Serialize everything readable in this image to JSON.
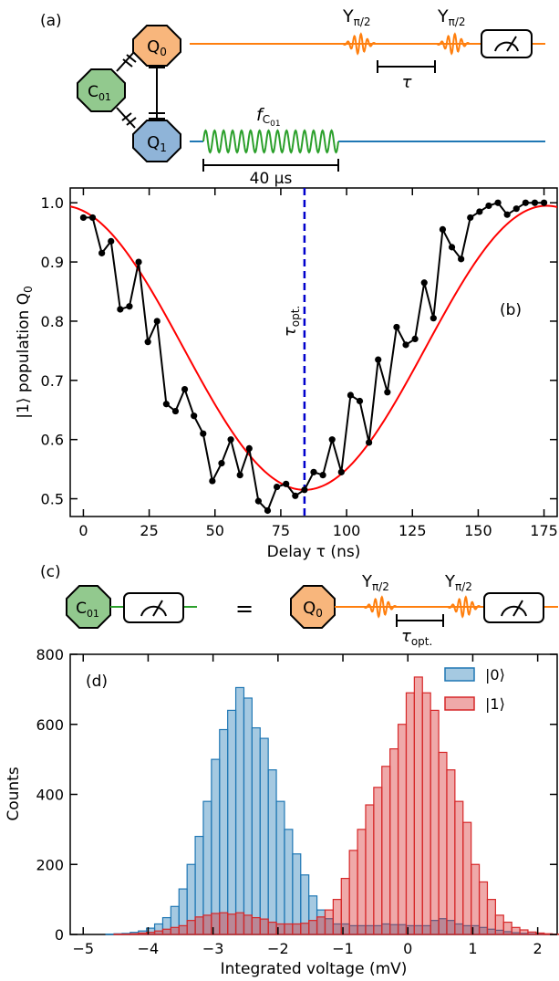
{
  "panel_a": {
    "label": "(a)",
    "q0": "Q",
    "q0_sub": "0",
    "c01": "C",
    "c01_sub": "01",
    "q1": "Q",
    "q1_sub": "1",
    "pulse1": "Y",
    "pulse1_sub": "π/2",
    "pulse2": "Y",
    "pulse2_sub": "π/2",
    "tau": "τ",
    "drive": "f",
    "drive_sub": "C",
    "drive_subsub": "01",
    "duration": "40 μs"
  },
  "panel_c": {
    "label": "(c)",
    "c01": "C",
    "c01_sub": "01",
    "equals": "=",
    "q0": "Q",
    "q0_sub": "0",
    "pulse1": "Y",
    "pulse1_sub": "π/2",
    "pulse2": "Y",
    "pulse2_sub": "π/2",
    "tau": "τ",
    "tau_sub": "opt."
  },
  "colors": {
    "q0_fill": "#f8b67c",
    "c01_fill": "#92c98e",
    "q1_fill": "#8fb4d8",
    "q0_line": "#ff7f0e",
    "drive": "#2ca02c",
    "q1_line": "#1f77b4",
    "fit": "#ff0000",
    "vline": "#0000cc",
    "hist0": "#1f77b4",
    "hist1": "#d62728"
  },
  "chart_data": [
    {
      "panel": "(b)",
      "type": "line",
      "xlabel": "Delay τ (ns)",
      "ylabel": "|1⟩ population Q",
      "ylabel_sub": "0",
      "xlim": [
        -5,
        180
      ],
      "ylim": [
        0.47,
        1.025
      ],
      "xticks": [
        0,
        25,
        50,
        75,
        100,
        125,
        150,
        175
      ],
      "yticks": [
        0.5,
        0.6,
        0.7,
        0.8,
        0.9,
        1.0
      ],
      "xtick_labels": [
        "0",
        "25",
        "50",
        "75",
        "100",
        "125",
        "150",
        "175"
      ],
      "ytick_labels": [
        "0.5",
        "0.6",
        "0.7",
        "0.8",
        "0.9",
        "1.0"
      ],
      "vline_x": 84,
      "vline_label": "τ",
      "vline_label_sub": "opt.",
      "fit": {
        "center": 84,
        "min": 0.515,
        "max": 0.995,
        "period": 184
      },
      "series": [
        {
          "x": [
            0,
            3.5,
            7,
            10.5,
            14,
            17.5,
            21,
            24.5,
            28,
            31.5,
            35,
            38.5,
            42,
            45.5,
            49,
            52.5,
            56,
            59.5,
            63,
            66.5,
            70,
            73.5,
            77,
            80.5,
            84,
            87.5,
            91,
            94.5,
            98,
            101.5,
            105,
            108.5,
            112,
            115.5,
            119,
            122.5,
            126,
            129.5,
            133,
            136.5,
            140,
            143.5,
            147,
            150.5,
            154,
            157.5,
            161,
            164.5,
            168,
            171.5,
            175
          ],
          "y": [
            0.975,
            0.975,
            0.915,
            0.935,
            0.82,
            0.825,
            0.9,
            0.765,
            0.8,
            0.66,
            0.648,
            0.685,
            0.64,
            0.61,
            0.53,
            0.56,
            0.6,
            0.54,
            0.585,
            0.496,
            0.48,
            0.52,
            0.525,
            0.505,
            0.515,
            0.545,
            0.54,
            0.6,
            0.545,
            0.675,
            0.665,
            0.595,
            0.735,
            0.68,
            0.79,
            0.76,
            0.77,
            0.865,
            0.805,
            0.955,
            0.925,
            0.905,
            0.975,
            0.985,
            0.995,
            1.0,
            0.98,
            0.99,
            1.0,
            1.0,
            1.0
          ]
        }
      ]
    },
    {
      "panel": "(d)",
      "type": "bar",
      "xlabel": "Integrated voltage (mV)",
      "ylabel": "Counts",
      "xlim": [
        -5.2,
        2.3
      ],
      "ylim": [
        0,
        800
      ],
      "xticks": [
        -5,
        -4,
        -3,
        -2,
        -1,
        0,
        1,
        2
      ],
      "yticks": [
        0,
        200,
        400,
        600,
        800
      ],
      "xtick_labels": [
        "−5",
        "−4",
        "−3",
        "−2",
        "−1",
        "0",
        "1",
        "2"
      ],
      "ytick_labels": [
        "0",
        "200",
        "400",
        "600",
        "800"
      ],
      "bin_start": -4.9,
      "bin_width": 0.125,
      "series": [
        {
          "name": "|0⟩",
          "values": [
            0,
            0,
            1,
            2,
            3,
            6,
            10,
            18,
            30,
            48,
            80,
            130,
            200,
            280,
            380,
            500,
            585,
            640,
            705,
            675,
            590,
            560,
            470,
            380,
            300,
            230,
            170,
            110,
            70,
            45,
            30,
            30,
            25,
            25,
            25,
            25,
            30,
            28,
            28,
            25,
            25,
            25,
            40,
            45,
            40,
            30,
            25,
            25,
            20,
            15,
            12,
            8,
            5,
            3,
            2,
            1,
            1,
            0,
            0,
            0
          ]
        },
        {
          "name": "|1⟩",
          "values": [
            0,
            0,
            0,
            1,
            1,
            2,
            4,
            6,
            10,
            15,
            20,
            25,
            40,
            50,
            55,
            60,
            62,
            58,
            62,
            55,
            48,
            44,
            35,
            30,
            30,
            30,
            32,
            40,
            50,
            70,
            100,
            160,
            240,
            300,
            370,
            420,
            480,
            530,
            600,
            690,
            735,
            690,
            640,
            520,
            470,
            380,
            320,
            200,
            150,
            100,
            55,
            35,
            20,
            13,
            7,
            4,
            2,
            1,
            0,
            0
          ]
        }
      ]
    }
  ]
}
